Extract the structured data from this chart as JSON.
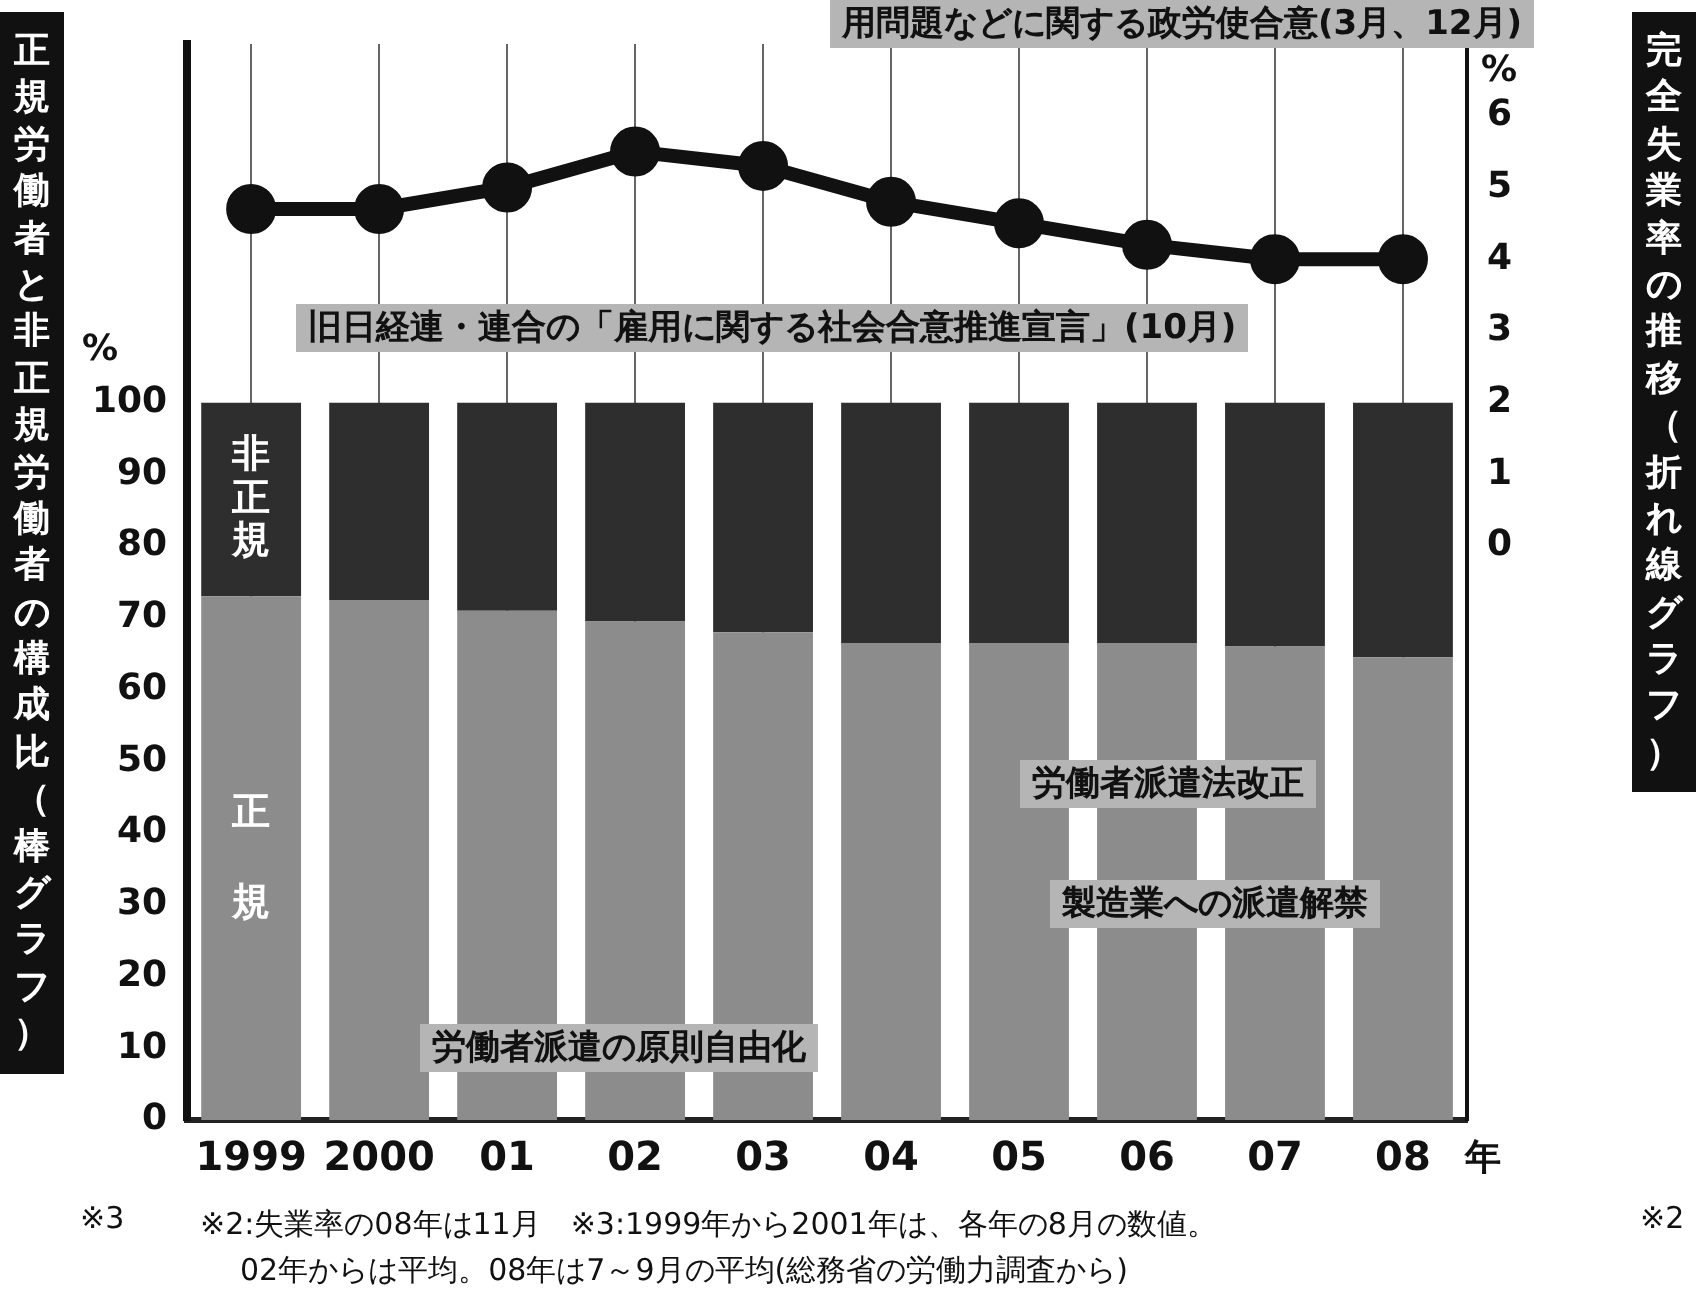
{
  "chart_data": {
    "type": "bar",
    "stacked": true,
    "ylabel": "正規労働者と非正規労働者の構成比（棒グラフ）",
    "y2label": "完全失業率の推移（折れ線グラフ）",
    "categories": [
      "1999",
      "2000",
      "01",
      "02",
      "03",
      "04",
      "05",
      "06",
      "07",
      "08"
    ],
    "series": [
      {
        "name": "正規",
        "color": "#8c8c8c",
        "values": [
          73,
          72.5,
          71,
          69.5,
          68,
          66.5,
          66.5,
          66.5,
          66,
          64.5
        ]
      },
      {
        "name": "非正規",
        "color": "#2e2e2e",
        "values": [
          27,
          27.5,
          29,
          30.5,
          32,
          33.5,
          33.5,
          33.5,
          34,
          35.5
        ]
      },
      {
        "type": "line",
        "axis": "y2",
        "color": "#111111",
        "marker": "circle",
        "values": [
          4.7,
          4.7,
          5.0,
          5.5,
          5.3,
          4.8,
          4.5,
          4.2,
          4.0,
          4.0
        ]
      }
    ],
    "ylim": [
      0,
      150
    ],
    "yticks": [
      0,
      10,
      20,
      30,
      40,
      50,
      60,
      70,
      80,
      90,
      100
    ],
    "y2lim": [
      -8,
      7
    ],
    "y2ticks": [
      0,
      1,
      2,
      3,
      4,
      5,
      6
    ],
    "grid": "x",
    "legend": false,
    "annotations": [
      "%",
      "%",
      "年",
      "旧日経連・連合の「雇用に関する社会合意推進宣言」(10月)",
      "用問題などに関する政労使合意(3月、12月)",
      "労働者派遣法改正",
      "製造業への派遣解禁",
      "労働者派遣の原則自由化",
      "※3",
      "※2",
      "※2:失業率の08年は11月　※3:1999年から2001年は、各年の8月の数値。",
      "02年からは平均。08年は7～9月の平均(総務省の労働力調査から)"
    ]
  }
}
